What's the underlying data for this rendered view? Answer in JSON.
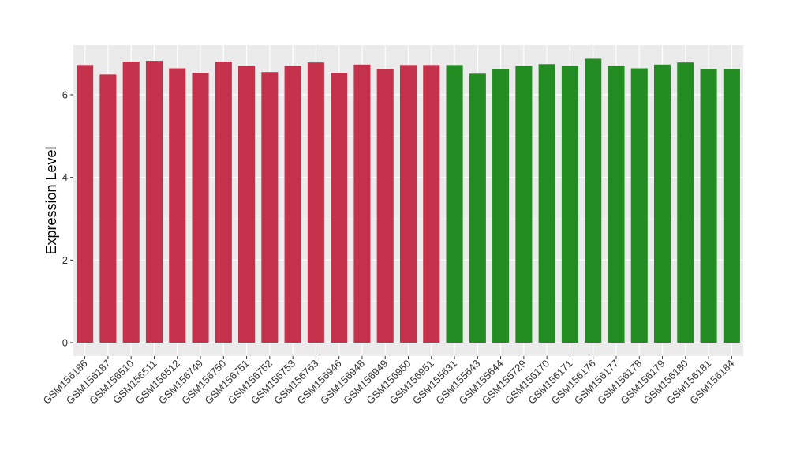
{
  "chart_data": {
    "type": "bar",
    "ylabel": "Expression Level",
    "xlabel": "",
    "ylim": [
      0,
      7.2
    ],
    "yticks": [
      0,
      2,
      4,
      6
    ],
    "grid": true,
    "legend": "none",
    "categories": [
      "GSM156186",
      "GSM156187",
      "GSM156510",
      "GSM156511",
      "GSM156512",
      "GSM156749",
      "GSM156750",
      "GSM156751",
      "GSM156752",
      "GSM156753",
      "GSM156763",
      "GSM156946",
      "GSM156948",
      "GSM156949",
      "GSM156950",
      "GSM156951",
      "GSM155631",
      "GSM155643",
      "GSM155644",
      "GSM155729",
      "GSM156170",
      "GSM156171",
      "GSM156176",
      "GSM156177",
      "GSM156178",
      "GSM156179",
      "GSM156180",
      "GSM156181",
      "GSM156184"
    ],
    "values": [
      6.72,
      6.49,
      6.8,
      6.82,
      6.64,
      6.53,
      6.8,
      6.7,
      6.55,
      6.7,
      6.78,
      6.53,
      6.73,
      6.62,
      6.72,
      6.72,
      6.72,
      6.51,
      6.62,
      6.7,
      6.74,
      6.7,
      6.87,
      6.7,
      6.64,
      6.73,
      6.78,
      6.62,
      6.62
    ],
    "group_sizes": [
      16,
      13
    ],
    "colors": [
      "#c4314b",
      "#228b22"
    ],
    "panel_color": "#ebebeb",
    "grid_color": "#ffffff"
  }
}
